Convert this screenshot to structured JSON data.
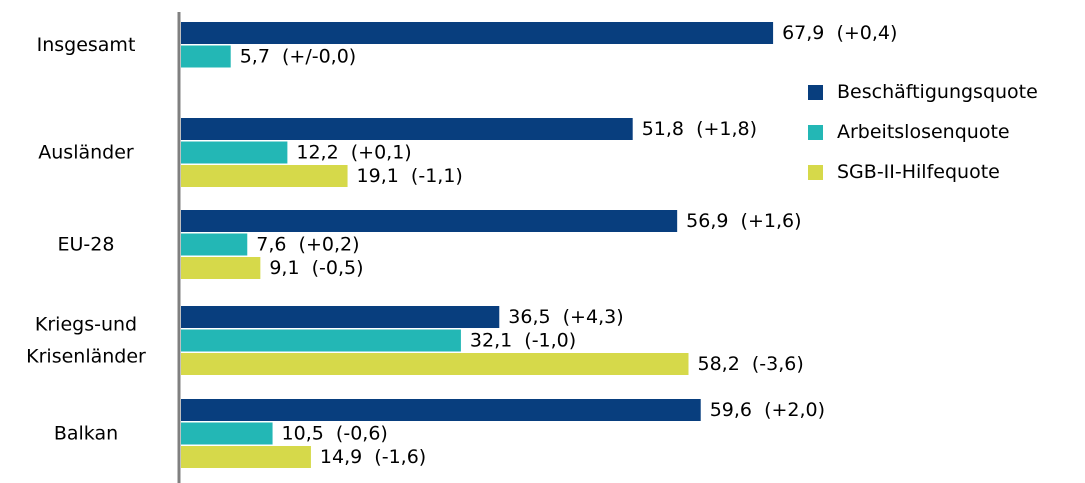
{
  "chart_data": {
    "type": "bar",
    "orientation": "horizontal",
    "categories": [
      "Insgesamt",
      "Ausländer",
      "EU-28",
      "Kriegs-und Krisenländer",
      "Balkan"
    ],
    "category_lines": [
      [
        "Insgesamt"
      ],
      [
        "Ausländer"
      ],
      [
        "EU-28"
      ],
      [
        "Kriegs-und",
        "Krisenländer"
      ],
      [
        "Balkan"
      ]
    ],
    "series": [
      {
        "name": "Beschäftigungsquote",
        "color": "#083e7e",
        "values": [
          67.9,
          51.8,
          56.9,
          36.5,
          59.6
        ],
        "labels": [
          "67,9  (+0,4)",
          "51,8  (+1,8)",
          "56,9  (+1,6)",
          "36,5  (+4,3)",
          "59,6  (+2,0)"
        ]
      },
      {
        "name": "Arbeitslosenquote",
        "color": "#23b7b5",
        "values": [
          5.7,
          12.2,
          7.6,
          32.1,
          10.5
        ],
        "labels": [
          "5,7  (+/-0,0)",
          "12,2  (+0,1)",
          "7,6  (+0,2)",
          "32,1  (-1,0)",
          "10,5  (-0,6)"
        ]
      },
      {
        "name": "SGB-II-Hilfequote",
        "color": "#d6d94a",
        "values": [
          null,
          19.1,
          9.1,
          58.2,
          14.9
        ],
        "labels": [
          null,
          "19,1  (-1,1)",
          "9,1  (-0,5)",
          "58,2  (-3,6)",
          "14,9  (-1,6)"
        ]
      }
    ],
    "xlim": [
      0,
      70
    ],
    "legend_position": "right",
    "grid": false
  }
}
